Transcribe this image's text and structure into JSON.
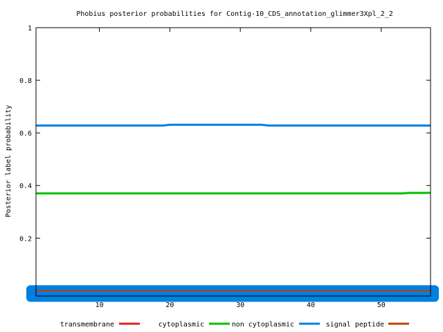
{
  "chart_data": {
    "type": "line",
    "title": "Phobius posterior probabilities for Contig-10_CDS_annotation_glimmer3Xpl_2_2",
    "xlabel": "",
    "ylabel": "Posterior label probability",
    "xlim": [
      1,
      57
    ],
    "ylim": [
      -0.02,
      1
    ],
    "x_ticks": [
      10,
      20,
      30,
      40,
      50
    ],
    "y_ticks": [
      0.2,
      0.4,
      0.6,
      0.8,
      1
    ],
    "y_tick_labels": [
      "0.2",
      "0.4",
      "0.6",
      "0.8",
      "1"
    ],
    "legend_position": "bottom",
    "legend": [
      {
        "name": "transmembrane",
        "color": "#e02020"
      },
      {
        "name": "cytoplasmic",
        "color": "#00c000"
      },
      {
        "name": "non cytoplasmic",
        "color": "#0080e0"
      },
      {
        "name": "signal peptide",
        "color": "#c04000"
      }
    ],
    "series": [
      {
        "name": "non cytoplasmic",
        "color": "#0080e0",
        "x": [
          1,
          19,
          20,
          33,
          34,
          57
        ],
        "y": [
          0.628,
          0.628,
          0.631,
          0.631,
          0.628,
          0.628
        ]
      },
      {
        "name": "cytoplasmic",
        "color": "#00c000",
        "x": [
          1,
          53,
          54,
          57
        ],
        "y": [
          0.37,
          0.37,
          0.372,
          0.372
        ]
      },
      {
        "name": "transmembrane",
        "color": "#e02020",
        "x": [
          1,
          57
        ],
        "y": [
          0.0,
          0.0
        ]
      },
      {
        "name": "signal peptide",
        "color": "#c04000",
        "x": [
          1,
          57
        ],
        "y": [
          0.0,
          0.0
        ]
      }
    ]
  }
}
